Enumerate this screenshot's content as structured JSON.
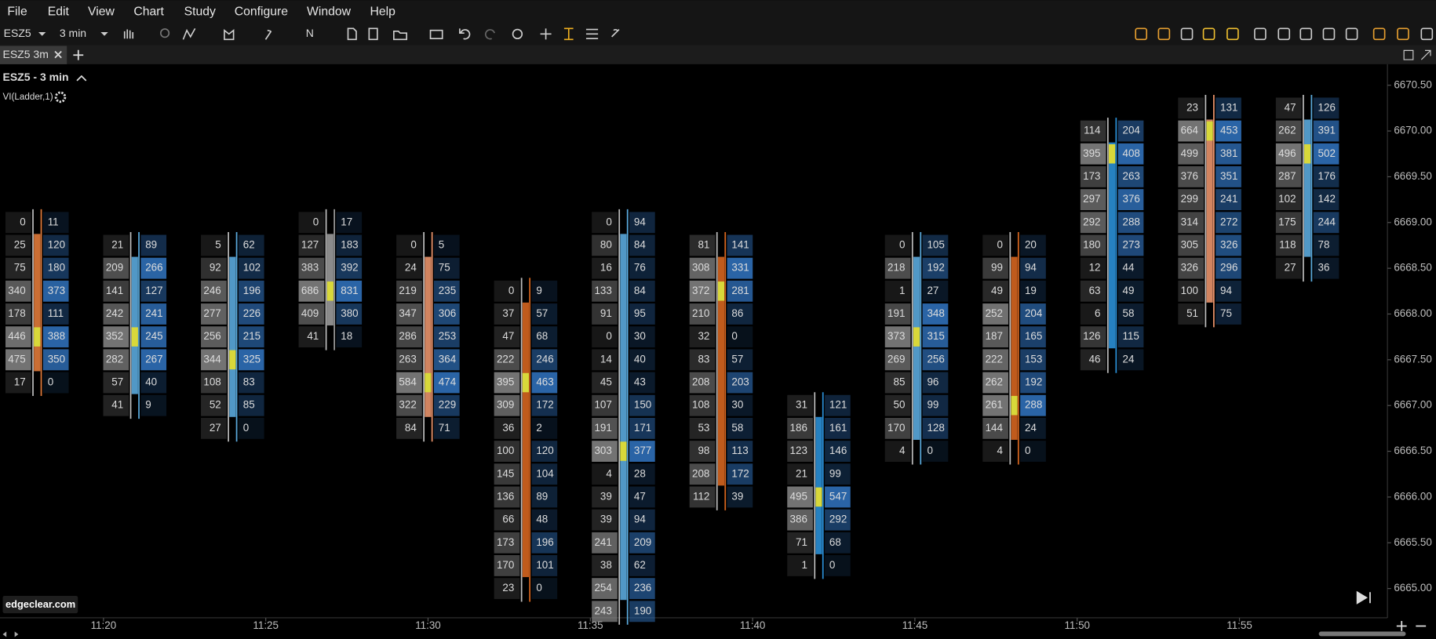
{
  "menu": [
    "File",
    "Edit",
    "View",
    "Chart",
    "Study",
    "Configure",
    "Window",
    "Help"
  ],
  "toolbar": {
    "symbol": "ESZ5",
    "interval": "3 min",
    "drawing_mode": "N"
  },
  "tab": {
    "label": "ESZ5 3m"
  },
  "chart": {
    "title": "ESZ5 - 3 min",
    "study": "VI(Ladder,1)",
    "ylim": [
      6664.68,
      6670.73
    ],
    "price_ticks": [
      {
        "value": 6670.5,
        "label": "6670.50"
      },
      {
        "value": 6670.0,
        "label": "6670.00"
      },
      {
        "value": 6669.5,
        "label": "6669.50"
      },
      {
        "value": 6669.0,
        "label": "6669.00"
      },
      {
        "value": 6668.5,
        "label": "6668.50"
      },
      {
        "value": 6668.0,
        "label": "6668.00"
      },
      {
        "value": 6667.5,
        "label": "6667.50"
      },
      {
        "value": 6667.0,
        "label": "6667.00"
      },
      {
        "value": 6666.5,
        "label": "6666.50"
      },
      {
        "value": 6666.0,
        "label": "6666.00"
      },
      {
        "value": 6665.5,
        "label": "6665.50"
      },
      {
        "value": 6665.0,
        "label": "6665.00"
      }
    ],
    "time_labels": [
      "11:20",
      "11:25",
      "11:30",
      "11:35",
      "11:40",
      "11:45",
      "11:50",
      "11:55"
    ],
    "bars": [
      {
        "high": 6669.0,
        "color": "#e07a3a",
        "bid": [
          0,
          25,
          75,
          340,
          178,
          446,
          475,
          17
        ],
        "ask": [
          11,
          120,
          180,
          373,
          111,
          388,
          350,
          0
        ]
      },
      {
        "high": 6668.75,
        "color": "#5aa9dc",
        "bid": [
          21,
          209,
          141,
          242,
          352,
          282,
          57,
          41
        ],
        "ask": [
          89,
          266,
          127,
          241,
          245,
          267,
          40,
          9
        ]
      },
      {
        "high": 6668.75,
        "color": "#5aa9dc",
        "bid": [
          5,
          92,
          246,
          277,
          256,
          344,
          108,
          52,
          27
        ],
        "ask": [
          62,
          102,
          196,
          226,
          215,
          325,
          83,
          85,
          0
        ]
      },
      {
        "high": 6669.0,
        "color": "#9a9a9a",
        "bid": [
          0,
          127,
          383,
          686,
          409,
          41
        ],
        "ask": [
          17,
          183,
          392,
          831,
          380,
          18
        ]
      },
      {
        "high": 6668.75,
        "color": "#e8926a",
        "bid": [
          0,
          24,
          219,
          347,
          286,
          263,
          584,
          322,
          84
        ],
        "ask": [
          5,
          75,
          235,
          306,
          253,
          364,
          474,
          229,
          71
        ]
      },
      {
        "high": 6668.25,
        "color": "#d5651f",
        "bid": [
          0,
          37,
          47,
          222,
          395,
          309,
          36,
          100,
          145,
          136,
          66,
          173,
          170,
          23
        ],
        "ask": [
          9,
          57,
          68,
          246,
          463,
          172,
          2,
          120,
          104,
          89,
          48,
          196,
          101,
          0
        ]
      },
      {
        "high": 6669.0,
        "color": "#5aa9dc",
        "bid": [
          0,
          80,
          16,
          133,
          91,
          0,
          14,
          45,
          107,
          191,
          303,
          4,
          39,
          39,
          241,
          38,
          254,
          243
        ],
        "ask": [
          94,
          84,
          76,
          84,
          95,
          30,
          40,
          43,
          150,
          171,
          377,
          28,
          47,
          94,
          209,
          62,
          236,
          190
        ]
      },
      {
        "high": 6668.75,
        "color": "#d5651f",
        "bid": [
          81,
          308,
          372,
          210,
          32,
          83,
          208,
          108,
          53,
          98,
          208,
          112
        ],
        "ask": [
          141,
          331,
          281,
          86,
          0,
          57,
          203,
          30,
          58,
          113,
          172,
          39
        ]
      },
      {
        "high": 6667.0,
        "color": "#2a8fd6",
        "bid": [
          31,
          186,
          123,
          21,
          495,
          386,
          71,
          1
        ],
        "ask": [
          121,
          161,
          146,
          99,
          547,
          292,
          68,
          0
        ]
      },
      {
        "high": 6668.75,
        "color": "#5aa9dc",
        "bid": [
          0,
          218,
          1,
          191,
          373,
          269,
          85,
          50,
          170,
          4
        ],
        "ask": [
          105,
          192,
          27,
          348,
          315,
          256,
          96,
          99,
          128,
          0
        ]
      },
      {
        "high": 6668.75,
        "color": "#d5651f",
        "bid": [
          0,
          99,
          49,
          252,
          187,
          222,
          262,
          261,
          144,
          4
        ],
        "ask": [
          20,
          94,
          19,
          204,
          165,
          153,
          192,
          288,
          24,
          0
        ]
      },
      {
        "high": 6670.0,
        "color": "#2a8fd6",
        "bid": [
          114,
          395,
          173,
          297,
          292,
          180,
          12,
          63,
          6,
          126,
          46
        ],
        "ask": [
          204,
          408,
          263,
          376,
          288,
          273,
          44,
          49,
          58,
          115,
          24
        ]
      },
      {
        "high": 6670.25,
        "color": "#e8926a",
        "bid": [
          23,
          664,
          499,
          376,
          299,
          314,
          305,
          326,
          100,
          51
        ],
        "ask": [
          131,
          453,
          381,
          351,
          241,
          272,
          326,
          296,
          94,
          75
        ]
      },
      {
        "high": 6670.25,
        "color": "#5aa9dc",
        "bid": [
          47,
          262,
          496,
          287,
          102,
          175,
          118,
          27
        ],
        "ask": [
          126,
          391,
          502,
          176,
          142,
          244,
          78,
          36
        ]
      }
    ]
  },
  "watermark": "edgeclear.com"
}
